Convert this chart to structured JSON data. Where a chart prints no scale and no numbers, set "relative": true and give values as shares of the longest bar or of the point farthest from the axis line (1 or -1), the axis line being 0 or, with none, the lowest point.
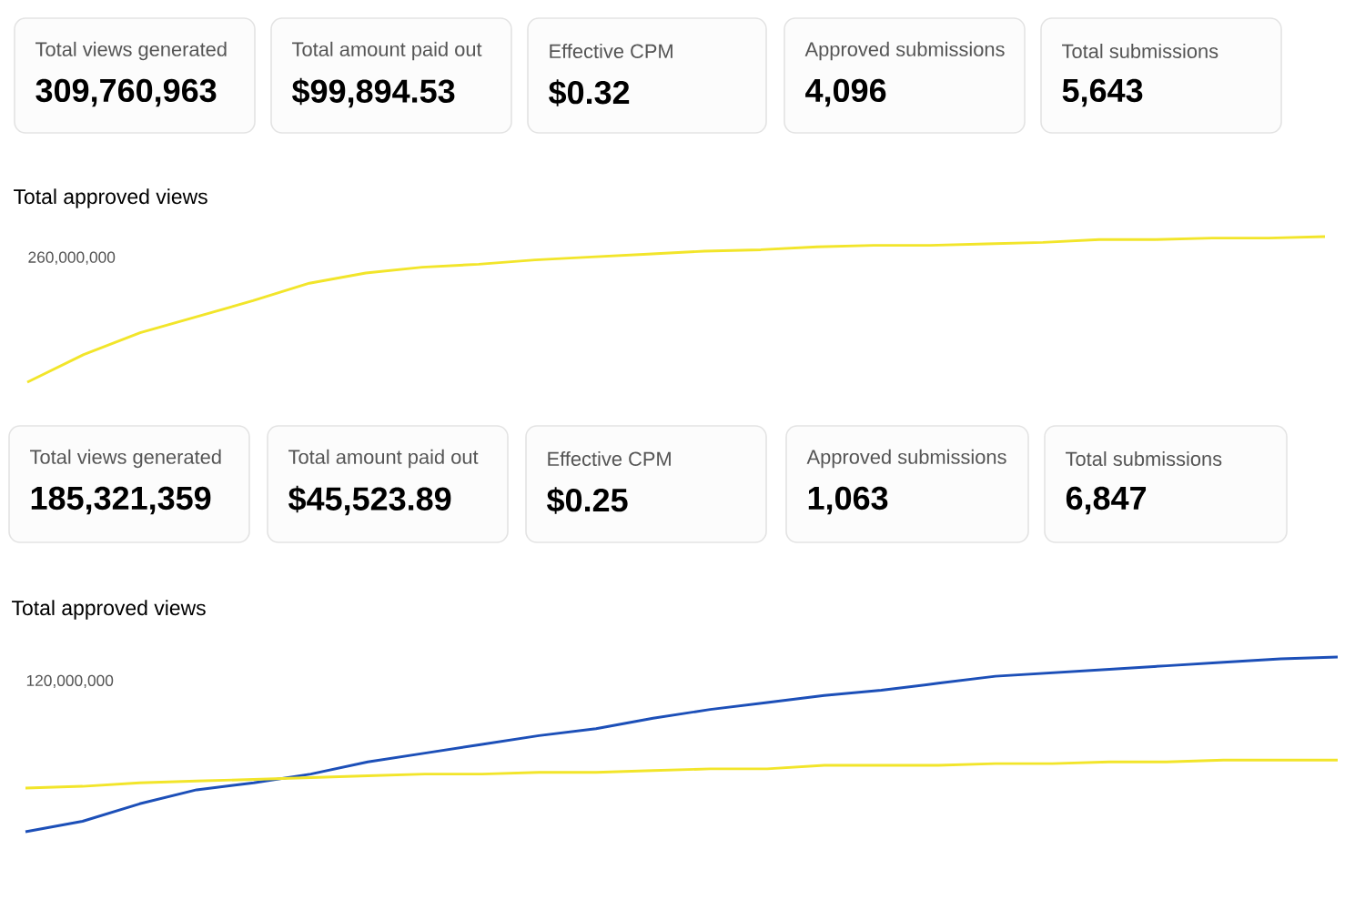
{
  "chart_data": [
    {
      "type": "other",
      "annotations": [
        "Total views generated",
        "309,760,963",
        "Total amount paid out",
        "$99,894.53",
        "Effective CPM",
        "$0.32",
        "Approved submissions",
        "4,096",
        "Total submissions",
        "5,643"
      ]
    },
    {
      "type": "line",
      "title": "Total approved views",
      "relative": true,
      "annotations": [
        "260,000,000"
      ],
      "categories": [
        null,
        null,
        null,
        null,
        null,
        null,
        null,
        null,
        null,
        null,
        null,
        null,
        null,
        null,
        null,
        null,
        null,
        null,
        null,
        null,
        null,
        null,
        null,
        null
      ],
      "series": [
        {
          "color": "#f2e52a",
          "values": [
            0,
            0.19,
            0.34,
            0.45,
            0.56,
            0.68,
            0.75,
            0.79,
            0.81,
            0.84,
            0.86,
            0.88,
            0.9,
            0.91,
            0.93,
            0.94,
            0.94,
            0.95,
            0.96,
            0.98,
            0.98,
            0.99,
            0.99,
            1
          ]
        }
      ]
    },
    {
      "type": "other",
      "annotations": [
        "Total views generated",
        "185,321,359",
        "Total amount paid out",
        "$45,523.89",
        "Effective CPM",
        "$0.25",
        "Approved submissions",
        "1,063",
        "Total submissions",
        "6,847"
      ]
    },
    {
      "type": "line",
      "title": "Total approved views",
      "relative": true,
      "annotations": [
        "120,000,000"
      ],
      "categories": [
        null,
        null,
        null,
        null,
        null,
        null,
        null,
        null,
        null,
        null,
        null,
        null,
        null,
        null,
        null,
        null,
        null,
        null,
        null,
        null,
        null,
        null,
        null,
        null
      ],
      "series": [
        {
          "color": "#1c4fb8",
          "values": [
            0,
            0.06,
            0.16,
            0.24,
            0.28,
            0.33,
            0.4,
            0.45,
            0.5,
            0.55,
            0.59,
            0.65,
            0.7,
            0.74,
            0.78,
            0.81,
            0.85,
            0.89,
            0.91,
            0.93,
            0.95,
            0.97,
            0.99,
            1
          ]
        },
        {
          "color": "#f2e52a",
          "values": [
            0.25,
            0.26,
            0.28,
            0.29,
            0.3,
            0.31,
            0.32,
            0.33,
            0.33,
            0.34,
            0.34,
            0.35,
            0.36,
            0.36,
            0.38,
            0.38,
            0.38,
            0.39,
            0.39,
            0.4,
            0.4,
            0.41,
            0.41,
            0.41
          ]
        }
      ]
    }
  ]
}
